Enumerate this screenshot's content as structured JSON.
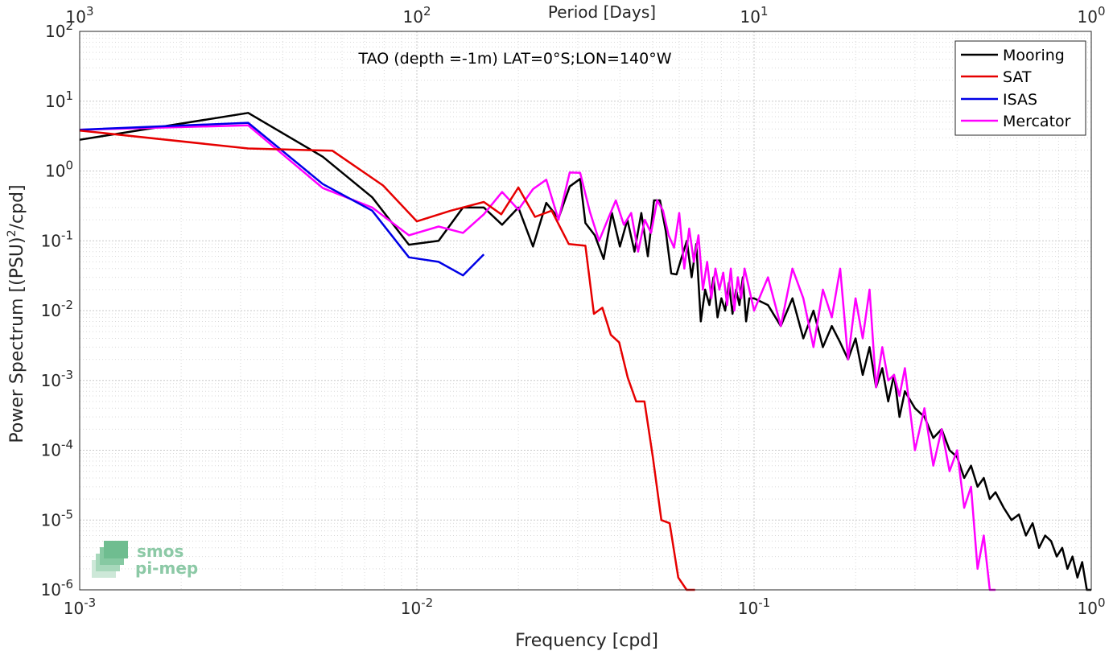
{
  "chart_data": {
    "type": "line",
    "title": "TAO (depth =-1m) LAT=0°S;LON=140°W",
    "xlabel": "Frequency [cpd]",
    "ylabel_prefix": "Power Spectrum [(PSU)",
    "ylabel_sup": "2",
    "ylabel_suffix": "/cpd]",
    "top_xlabel": "Period [Days]",
    "xscale": "log",
    "yscale": "log",
    "xlim": [
      0.001,
      1
    ],
    "ylim": [
      1e-06,
      100
    ],
    "grid": true,
    "minor_grid": true,
    "legend_position": "top-right",
    "x_ticks": [
      {
        "value": 0.001,
        "base": "10",
        "exp": "-3"
      },
      {
        "value": 0.01,
        "base": "10",
        "exp": "-2"
      },
      {
        "value": 0.1,
        "base": "10",
        "exp": "-1"
      },
      {
        "value": 1,
        "base": "10",
        "exp": "0"
      }
    ],
    "top_ticks": [
      {
        "value": 0.001,
        "base": "10",
        "exp": "3"
      },
      {
        "value": 0.01,
        "base": "10",
        "exp": "2"
      },
      {
        "value": 0.1,
        "base": "10",
        "exp": "1"
      },
      {
        "value": 1,
        "base": "10",
        "exp": "0"
      }
    ],
    "y_ticks": [
      {
        "value": 100,
        "base": "10",
        "exp": "2"
      },
      {
        "value": 10,
        "base": "10",
        "exp": "1"
      },
      {
        "value": 1,
        "base": "10",
        "exp": "0"
      },
      {
        "value": 0.1,
        "base": "10",
        "exp": "-1"
      },
      {
        "value": 0.01,
        "base": "10",
        "exp": "-2"
      },
      {
        "value": 0.001,
        "base": "10",
        "exp": "-3"
      },
      {
        "value": 0.0001,
        "base": "10",
        "exp": "-4"
      },
      {
        "value": 1e-05,
        "base": "10",
        "exp": "-5"
      },
      {
        "value": 1e-06,
        "base": "10",
        "exp": "-6"
      }
    ],
    "series": [
      {
        "name": "Mooring",
        "color": "#000000",
        "x": [
          0.001,
          0.00316,
          0.00526,
          0.00737,
          0.00947,
          0.0116,
          0.0137,
          0.0158,
          0.0179,
          0.02,
          0.0221,
          0.0242,
          0.0263,
          0.0284,
          0.0305,
          0.0316,
          0.0337,
          0.0358,
          0.0379,
          0.04,
          0.0421,
          0.0442,
          0.0463,
          0.0484,
          0.0505,
          0.0526,
          0.0547,
          0.0568,
          0.0589,
          0.0611,
          0.0632,
          0.0653,
          0.0674,
          0.0695,
          0.0716,
          0.0737,
          0.0758,
          0.0779,
          0.08,
          0.0821,
          0.0842,
          0.0863,
          0.0884,
          0.0905,
          0.0926,
          0.0947,
          0.0968,
          0.1,
          0.11,
          0.12,
          0.13,
          0.14,
          0.15,
          0.16,
          0.17,
          0.18,
          0.19,
          0.2,
          0.21,
          0.22,
          0.23,
          0.24,
          0.25,
          0.26,
          0.27,
          0.28,
          0.3,
          0.32,
          0.34,
          0.36,
          0.38,
          0.4,
          0.42,
          0.44,
          0.46,
          0.48,
          0.5,
          0.52,
          0.55,
          0.58,
          0.61,
          0.64,
          0.67,
          0.7,
          0.73,
          0.76,
          0.79,
          0.82,
          0.85,
          0.88,
          0.91,
          0.94,
          0.97,
          1.0
        ],
        "y": [
          2.8,
          6.8,
          1.6,
          0.42,
          0.088,
          0.1,
          0.3,
          0.3,
          0.17,
          0.3,
          0.083,
          0.35,
          0.21,
          0.6,
          0.77,
          0.18,
          0.12,
          0.055,
          0.25,
          0.083,
          0.2,
          0.07,
          0.25,
          0.06,
          0.38,
          0.38,
          0.14,
          0.034,
          0.033,
          0.06,
          0.1,
          0.03,
          0.09,
          0.007,
          0.02,
          0.012,
          0.03,
          0.008,
          0.015,
          0.01,
          0.025,
          0.009,
          0.02,
          0.012,
          0.03,
          0.007,
          0.015,
          0.015,
          0.012,
          0.006,
          0.015,
          0.004,
          0.01,
          0.003,
          0.006,
          0.0035,
          0.002,
          0.004,
          0.0012,
          0.003,
          0.0008,
          0.0015,
          0.0005,
          0.0012,
          0.0003,
          0.0007,
          0.0004,
          0.0003,
          0.00015,
          0.0002,
          0.0001,
          8e-05,
          4e-05,
          6e-05,
          3e-05,
          4e-05,
          2e-05,
          2.5e-05,
          1.5e-05,
          1e-05,
          1.2e-05,
          6e-06,
          9e-06,
          4e-06,
          6e-06,
          5e-06,
          3e-06,
          4e-06,
          2e-06,
          3e-06,
          1.5e-06,
          2.5e-06,
          1e-06,
          1e-06
        ]
      },
      {
        "name": "SAT",
        "color": "#e60000",
        "x": [
          0.001,
          0.00316,
          0.00562,
          0.00794,
          0.01,
          0.0126,
          0.0158,
          0.0178,
          0.02,
          0.0224,
          0.0251,
          0.0282,
          0.0316,
          0.0335,
          0.0355,
          0.0376,
          0.0398,
          0.0422,
          0.0447,
          0.0473,
          0.0501,
          0.0531,
          0.0562,
          0.0596,
          0.0631,
          0.0668
        ],
        "y": [
          3.8,
          2.1,
          1.95,
          0.62,
          0.19,
          0.27,
          0.36,
          0.24,
          0.58,
          0.22,
          0.27,
          0.09,
          0.085,
          0.009,
          0.011,
          0.0045,
          0.0035,
          0.0011,
          0.0005,
          0.0005,
          8e-05,
          1e-05,
          9e-06,
          1.5e-06,
          1e-06,
          1e-06
        ]
      },
      {
        "name": "ISAS",
        "color": "#0000e6",
        "x": [
          0.001,
          0.00316,
          0.00526,
          0.00737,
          0.00947,
          0.0116,
          0.0137,
          0.0158
        ],
        "y": [
          3.9,
          4.9,
          0.65,
          0.27,
          0.058,
          0.05,
          0.032,
          0.064
        ]
      },
      {
        "name": "Mercator",
        "color": "#ff00ff",
        "x": [
          0.001,
          0.00316,
          0.00526,
          0.00737,
          0.00947,
          0.0116,
          0.0137,
          0.0158,
          0.0179,
          0.02,
          0.0221,
          0.0242,
          0.0263,
          0.0284,
          0.0305,
          0.0326,
          0.0347,
          0.0368,
          0.0389,
          0.0411,
          0.0432,
          0.0453,
          0.0474,
          0.0495,
          0.0516,
          0.0537,
          0.0558,
          0.0579,
          0.06,
          0.0621,
          0.0642,
          0.0663,
          0.0684,
          0.0705,
          0.0726,
          0.0747,
          0.0768,
          0.0789,
          0.081,
          0.0832,
          0.0853,
          0.0874,
          0.0895,
          0.0916,
          0.0937,
          0.1,
          0.11,
          0.12,
          0.13,
          0.14,
          0.15,
          0.16,
          0.17,
          0.18,
          0.19,
          0.2,
          0.21,
          0.22,
          0.23,
          0.24,
          0.25,
          0.26,
          0.27,
          0.28,
          0.3,
          0.32,
          0.34,
          0.36,
          0.38,
          0.4,
          0.42,
          0.44,
          0.46,
          0.48,
          0.5,
          0.52
        ],
        "y": [
          3.9,
          4.5,
          0.57,
          0.3,
          0.12,
          0.16,
          0.13,
          0.24,
          0.5,
          0.28,
          0.55,
          0.75,
          0.2,
          0.95,
          0.94,
          0.26,
          0.1,
          0.2,
          0.38,
          0.17,
          0.25,
          0.07,
          0.2,
          0.13,
          0.38,
          0.27,
          0.12,
          0.08,
          0.25,
          0.04,
          0.15,
          0.05,
          0.12,
          0.02,
          0.05,
          0.015,
          0.04,
          0.02,
          0.035,
          0.012,
          0.04,
          0.01,
          0.03,
          0.015,
          0.04,
          0.01,
          0.03,
          0.006,
          0.04,
          0.015,
          0.003,
          0.02,
          0.008,
          0.04,
          0.002,
          0.015,
          0.004,
          0.02,
          0.0008,
          0.003,
          0.001,
          0.0012,
          0.0006,
          0.0015,
          0.0001,
          0.0004,
          6e-05,
          0.0002,
          5e-05,
          0.0001,
          1.5e-05,
          3e-05,
          2e-06,
          6e-06,
          1e-06,
          1e-06
        ]
      }
    ]
  },
  "logo": {
    "line1": "smos",
    "line2": "pi-mep"
  }
}
